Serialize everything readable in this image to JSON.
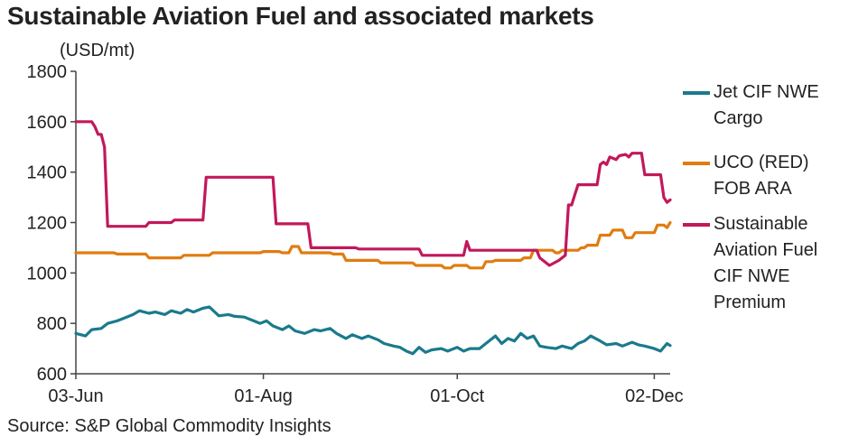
{
  "title": "Sustainable Aviation Fuel and associated markets",
  "unit": "(USD/mt)",
  "source": "Source: S&P Global Commodity Insights",
  "chart_data": {
    "type": "line",
    "title": "Sustainable Aviation Fuel and associated markets",
    "ylabel": "(USD/mt)",
    "xlabel": "",
    "ylim": [
      600,
      1800
    ],
    "yticks": [
      600,
      800,
      1000,
      1200,
      1400,
      1600,
      1800
    ],
    "xlim": [
      0,
      187
    ],
    "xticks": [
      {
        "label": "03-Jun",
        "day": 0
      },
      {
        "label": "01-Aug",
        "day": 59
      },
      {
        "label": "01-Oct",
        "day": 120
      },
      {
        "label": "02-Dec",
        "day": 182
      }
    ],
    "grid": false,
    "legend_position": "right",
    "series": [
      {
        "name": "Jet CIF NWE Cargo",
        "color": "#1a7a8c",
        "points": [
          [
            0,
            760
          ],
          [
            3,
            750
          ],
          [
            5,
            775
          ],
          [
            8,
            780
          ],
          [
            10,
            800
          ],
          [
            13,
            810
          ],
          [
            15,
            820
          ],
          [
            18,
            835
          ],
          [
            20,
            850
          ],
          [
            23,
            840
          ],
          [
            25,
            845
          ],
          [
            28,
            835
          ],
          [
            30,
            850
          ],
          [
            33,
            840
          ],
          [
            35,
            855
          ],
          [
            37,
            845
          ],
          [
            40,
            860
          ],
          [
            42,
            865
          ],
          [
            45,
            830
          ],
          [
            48,
            835
          ],
          [
            50,
            828
          ],
          [
            53,
            825
          ],
          [
            55,
            815
          ],
          [
            58,
            800
          ],
          [
            60,
            810
          ],
          [
            62,
            790
          ],
          [
            65,
            775
          ],
          [
            67,
            790
          ],
          [
            69,
            770
          ],
          [
            72,
            760
          ],
          [
            75,
            775
          ],
          [
            77,
            770
          ],
          [
            80,
            780
          ],
          [
            82,
            760
          ],
          [
            85,
            740
          ],
          [
            87,
            755
          ],
          [
            90,
            740
          ],
          [
            92,
            750
          ],
          [
            95,
            735
          ],
          [
            97,
            720
          ],
          [
            100,
            710
          ],
          [
            102,
            705
          ],
          [
            104,
            690
          ],
          [
            106,
            680
          ],
          [
            108,
            705
          ],
          [
            110,
            685
          ],
          [
            112,
            695
          ],
          [
            115,
            700
          ],
          [
            117,
            690
          ],
          [
            120,
            705
          ],
          [
            122,
            690
          ],
          [
            124,
            700
          ],
          [
            127,
            700
          ],
          [
            130,
            730
          ],
          [
            132,
            750
          ],
          [
            134,
            720
          ],
          [
            136,
            740
          ],
          [
            138,
            730
          ],
          [
            140,
            760
          ],
          [
            142,
            740
          ],
          [
            144,
            750
          ],
          [
            146,
            710
          ],
          [
            148,
            705
          ],
          [
            151,
            700
          ],
          [
            153,
            710
          ],
          [
            156,
            700
          ],
          [
            158,
            720
          ],
          [
            160,
            730
          ],
          [
            162,
            750
          ],
          [
            165,
            730
          ],
          [
            167,
            715
          ],
          [
            170,
            720
          ],
          [
            172,
            710
          ],
          [
            175,
            725
          ],
          [
            177,
            715
          ],
          [
            179,
            710
          ],
          [
            182,
            700
          ],
          [
            184,
            690
          ],
          [
            186,
            720
          ],
          [
            187,
            712
          ]
        ]
      },
      {
        "name": "UCO (RED) FOB ARA",
        "color": "#e07c10",
        "points": [
          [
            0,
            1080
          ],
          [
            12,
            1080
          ],
          [
            13,
            1075
          ],
          [
            22,
            1075
          ],
          [
            23,
            1060
          ],
          [
            33,
            1060
          ],
          [
            34,
            1070
          ],
          [
            42,
            1070
          ],
          [
            43,
            1080
          ],
          [
            58,
            1080
          ],
          [
            59,
            1085
          ],
          [
            64,
            1085
          ],
          [
            65,
            1080
          ],
          [
            67,
            1080
          ],
          [
            68,
            1105
          ],
          [
            70,
            1105
          ],
          [
            71,
            1080
          ],
          [
            80,
            1080
          ],
          [
            81,
            1075
          ],
          [
            84,
            1075
          ],
          [
            85,
            1050
          ],
          [
            95,
            1050
          ],
          [
            96,
            1040
          ],
          [
            106,
            1040
          ],
          [
            107,
            1030
          ],
          [
            115,
            1030
          ],
          [
            116,
            1020
          ],
          [
            118,
            1020
          ],
          [
            119,
            1030
          ],
          [
            123,
            1030
          ],
          [
            124,
            1020
          ],
          [
            128,
            1020
          ],
          [
            129,
            1045
          ],
          [
            131,
            1045
          ],
          [
            132,
            1050
          ],
          [
            140,
            1050
          ],
          [
            141,
            1060
          ],
          [
            143,
            1060
          ],
          [
            144,
            1090
          ],
          [
            150,
            1090
          ],
          [
            151,
            1080
          ],
          [
            152,
            1080
          ],
          [
            153,
            1090
          ],
          [
            158,
            1090
          ],
          [
            159,
            1100
          ],
          [
            160,
            1100
          ],
          [
            161,
            1110
          ],
          [
            164,
            1110
          ],
          [
            165,
            1150
          ],
          [
            168,
            1150
          ],
          [
            169,
            1170
          ],
          [
            172,
            1170
          ],
          [
            173,
            1140
          ],
          [
            175,
            1140
          ],
          [
            176,
            1160
          ],
          [
            182,
            1160
          ],
          [
            183,
            1190
          ],
          [
            185,
            1190
          ],
          [
            186,
            1180
          ],
          [
            187,
            1200
          ]
        ]
      },
      {
        "name": "Sustainable Aviation Fuel CIF NWE Premium",
        "color": "#c2185b",
        "points": [
          [
            0,
            1600
          ],
          [
            5,
            1600
          ],
          [
            6,
            1580
          ],
          [
            7,
            1550
          ],
          [
            8,
            1550
          ],
          [
            9,
            1500
          ],
          [
            10,
            1185
          ],
          [
            22,
            1185
          ],
          [
            23,
            1200
          ],
          [
            30,
            1200
          ],
          [
            31,
            1210
          ],
          [
            40,
            1210
          ],
          [
            41,
            1380
          ],
          [
            62,
            1380
          ],
          [
            63,
            1195
          ],
          [
            73,
            1195
          ],
          [
            74,
            1100
          ],
          [
            88,
            1100
          ],
          [
            89,
            1095
          ],
          [
            108,
            1095
          ],
          [
            109,
            1070
          ],
          [
            122,
            1070
          ],
          [
            123,
            1125
          ],
          [
            124,
            1090
          ],
          [
            145,
            1090
          ],
          [
            146,
            1060
          ],
          [
            149,
            1030
          ],
          [
            152,
            1050
          ],
          [
            154,
            1070
          ],
          [
            155,
            1270
          ],
          [
            156,
            1270
          ],
          [
            157,
            1310
          ],
          [
            158,
            1350
          ],
          [
            164,
            1350
          ],
          [
            165,
            1430
          ],
          [
            166,
            1440
          ],
          [
            167,
            1430
          ],
          [
            168,
            1460
          ],
          [
            170,
            1450
          ],
          [
            171,
            1465
          ],
          [
            173,
            1470
          ],
          [
            174,
            1460
          ],
          [
            175,
            1475
          ],
          [
            178,
            1475
          ],
          [
            179,
            1390
          ],
          [
            184,
            1390
          ],
          [
            185,
            1300
          ],
          [
            186,
            1280
          ],
          [
            187,
            1290
          ]
        ]
      }
    ]
  }
}
